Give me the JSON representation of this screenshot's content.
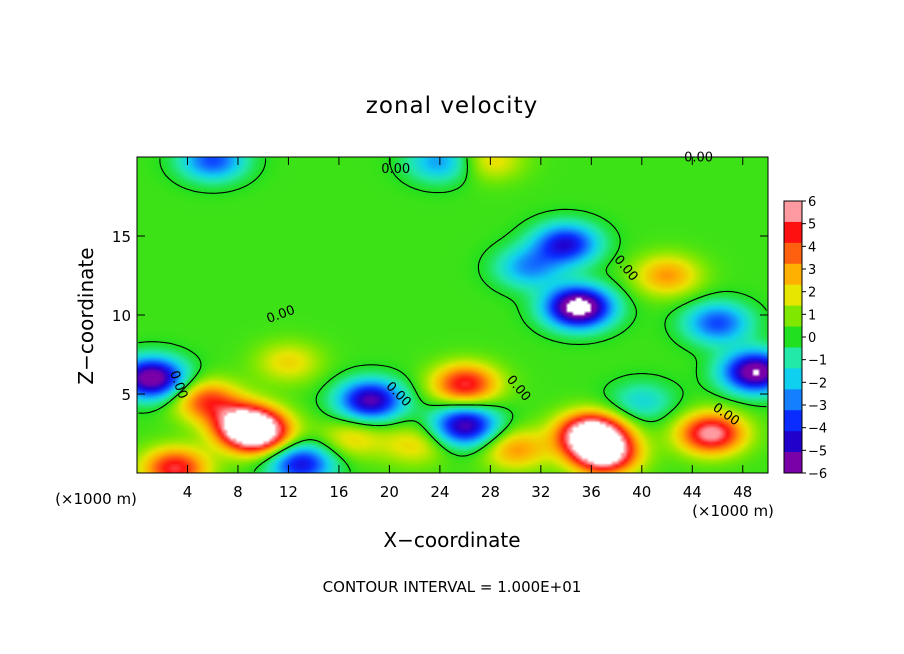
{
  "chart_data": {
    "type": "heatmap",
    "title": "zonal velocity",
    "xlabel": "X−coordinate",
    "ylabel": "Z−coordinate",
    "x_unit": "(×1000 m)",
    "z_unit": "(×1000 m)",
    "xlim": [
      0,
      50
    ],
    "ylim": [
      0,
      20
    ],
    "x_ticks": [
      "4",
      "8",
      "12",
      "16",
      "20",
      "24",
      "28",
      "32",
      "36",
      "40",
      "44",
      "48"
    ],
    "y_ticks": [
      "5",
      "10",
      "15"
    ],
    "colorbar_ticks": [
      "6",
      "5",
      "4",
      "3",
      "2",
      "1",
      "0",
      "−1",
      "−2",
      "−3",
      "−4",
      "−5",
      "−6"
    ],
    "colorbar_range": [
      -6,
      6
    ],
    "contour_labels": [
      "0.00",
      "0.00",
      "0.00",
      "0.00",
      "0.00",
      "0.00",
      "0.00",
      "0.00",
      "0.00"
    ],
    "contour_interval_text": "CONTOUR INTERVAL = 1.000E+01",
    "features": [
      {
        "x": 35,
        "z": 10.5,
        "value": -8
      },
      {
        "x": 34,
        "z": 14.5,
        "value": -5
      },
      {
        "x": 31,
        "z": 13.0,
        "value": -3
      },
      {
        "x": 42,
        "z": 12.5,
        "value": 3
      },
      {
        "x": 8.5,
        "z": 3.2,
        "value": 5
      },
      {
        "x": 9.5,
        "z": 2.5,
        "value": 7
      },
      {
        "x": 5.5,
        "z": 4.6,
        "value": 4
      },
      {
        "x": 18.5,
        "z": 4.6,
        "value": -6
      },
      {
        "x": 26,
        "z": 3.0,
        "value": -6
      },
      {
        "x": 26,
        "z": 5.6,
        "value": 5
      },
      {
        "x": 36,
        "z": 2.5,
        "value": 8
      },
      {
        "x": 37,
        "z": 1.2,
        "value": 7
      },
      {
        "x": 1.2,
        "z": 6.0,
        "value": -7
      },
      {
        "x": 49,
        "z": 6.4,
        "value": -7
      },
      {
        "x": 45.5,
        "z": 2.5,
        "value": 6
      },
      {
        "x": 13,
        "z": 0.6,
        "value": -5
      },
      {
        "x": 3,
        "z": 0.3,
        "value": 5
      },
      {
        "x": 30,
        "z": 1.5,
        "value": 3
      },
      {
        "x": 22,
        "z": 1.8,
        "value": 2
      },
      {
        "x": 17,
        "z": 2.2,
        "value": 2
      },
      {
        "x": 24,
        "z": 19.7,
        "value": -3
      },
      {
        "x": 6,
        "z": 19.8,
        "value": -4
      },
      {
        "x": 28,
        "z": 19.8,
        "value": 2
      },
      {
        "x": 46,
        "z": 9.5,
        "value": -4
      },
      {
        "x": 12,
        "z": 7.0,
        "value": 2
      },
      {
        "x": 40,
        "z": 4.5,
        "value": -2
      }
    ]
  }
}
